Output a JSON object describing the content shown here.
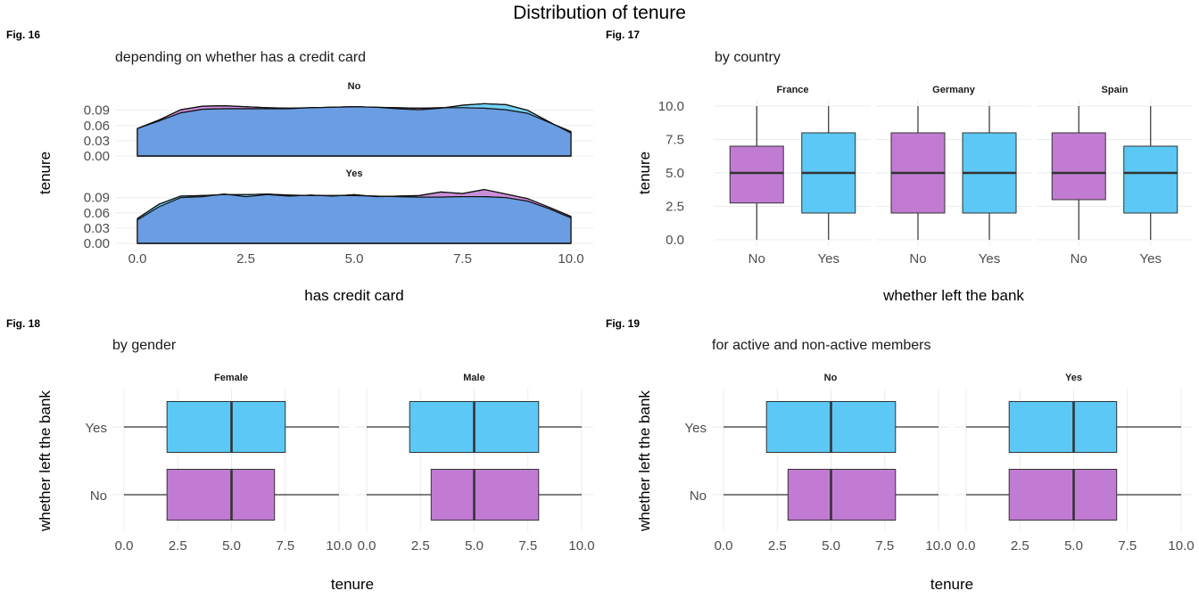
{
  "title": "Distribution of tenure",
  "colors": {
    "No": "#c17bd3",
    "Yes": "#5cc8f6",
    "overlap": "#6a9de2"
  },
  "chart_data": [
    {
      "fig_label": "Fig. 16",
      "type": "density",
      "subtitle": "depending on whether has a credit card",
      "xlabel": "has credit card",
      "ylabel": "tenure",
      "xlim": [
        0,
        10
      ],
      "xticks": [
        "0.0",
        "2.5",
        "5.0",
        "7.5",
        "10.0"
      ],
      "ylim": [
        0,
        0.1
      ],
      "yticks": [
        "0.00",
        "0.03",
        "0.06",
        "0.09"
      ],
      "fill_groups": [
        "No",
        "Yes"
      ],
      "panels": [
        {
          "label": "No",
          "x": [
            0,
            0.5,
            1,
            1.5,
            2,
            2.5,
            3,
            3.5,
            4,
            4.5,
            5,
            5.5,
            6,
            6.5,
            7,
            7.5,
            8,
            8.5,
            9,
            9.5,
            10
          ],
          "series": [
            {
              "group": "No",
              "values": [
                0.054,
                0.071,
                0.091,
                0.098,
                0.099,
                0.097,
                0.095,
                0.094,
                0.095,
                0.096,
                0.097,
                0.096,
                0.095,
                0.094,
                0.095,
                0.095,
                0.094,
                0.091,
                0.084,
                0.066,
                0.048
              ]
            },
            {
              "group": "Yes",
              "values": [
                0.054,
                0.069,
                0.085,
                0.092,
                0.093,
                0.093,
                0.093,
                0.093,
                0.095,
                0.096,
                0.097,
                0.096,
                0.093,
                0.091,
                0.094,
                0.1,
                0.103,
                0.101,
                0.09,
                0.067,
                0.045
              ]
            }
          ]
        },
        {
          "label": "Yes",
          "x": [
            0,
            0.5,
            1,
            1.5,
            2,
            2.5,
            3,
            3.5,
            4,
            4.5,
            5,
            5.5,
            6,
            6.5,
            7,
            7.5,
            8,
            8.5,
            9,
            9.5,
            10
          ],
          "series": [
            {
              "group": "No",
              "values": [
                0.046,
                0.072,
                0.09,
                0.092,
                0.097,
                0.092,
                0.096,
                0.093,
                0.095,
                0.093,
                0.096,
                0.092,
                0.093,
                0.094,
                0.101,
                0.098,
                0.106,
                0.097,
                0.088,
                0.071,
                0.053
              ]
            },
            {
              "group": "Yes",
              "values": [
                0.049,
                0.077,
                0.093,
                0.094,
                0.096,
                0.096,
                0.097,
                0.095,
                0.094,
                0.094,
                0.094,
                0.093,
                0.092,
                0.091,
                0.091,
                0.092,
                0.092,
                0.09,
                0.083,
                0.068,
                0.05
              ]
            }
          ]
        }
      ]
    },
    {
      "fig_label": "Fig. 17",
      "type": "boxplot",
      "orientation": "vertical",
      "subtitle": "by country",
      "xlabel": "whether left the bank",
      "ylabel": "tenure",
      "ylim": [
        0,
        10
      ],
      "yticks": [
        "0.0",
        "2.5",
        "5.0",
        "7.5",
        "10.0"
      ],
      "categories": [
        "No",
        "Yes"
      ],
      "panels": [
        {
          "label": "France",
          "boxes": [
            {
              "category": "No",
              "min": 0,
              "q1": 2.75,
              "median": 5,
              "q3": 7,
              "max": 10
            },
            {
              "category": "Yes",
              "min": 0,
              "q1": 2,
              "median": 5,
              "q3": 8,
              "max": 10
            }
          ]
        },
        {
          "label": "Germany",
          "boxes": [
            {
              "category": "No",
              "min": 0,
              "q1": 2,
              "median": 5,
              "q3": 8,
              "max": 10
            },
            {
              "category": "Yes",
              "min": 0,
              "q1": 2,
              "median": 5,
              "q3": 8,
              "max": 10
            }
          ]
        },
        {
          "label": "Spain",
          "boxes": [
            {
              "category": "No",
              "min": 0,
              "q1": 3,
              "median": 5,
              "q3": 8,
              "max": 10
            },
            {
              "category": "Yes",
              "min": 0,
              "q1": 2,
              "median": 5,
              "q3": 7,
              "max": 10
            }
          ]
        }
      ]
    },
    {
      "fig_label": "Fig. 18",
      "type": "boxplot",
      "orientation": "horizontal",
      "subtitle": "by gender",
      "xlabel": "tenure",
      "ylabel": "whether left the bank",
      "xlim": [
        0,
        10
      ],
      "xticks": [
        "0.0",
        "2.5",
        "5.0",
        "7.5",
        "10.0"
      ],
      "categories": [
        "No",
        "Yes"
      ],
      "panels": [
        {
          "label": "Female",
          "boxes": [
            {
              "category": "No",
              "min": 0,
              "q1": 2,
              "median": 5,
              "q3": 7,
              "max": 10
            },
            {
              "category": "Yes",
              "min": 0,
              "q1": 2,
              "median": 5,
              "q3": 7.5,
              "max": 10
            }
          ]
        },
        {
          "label": "Male",
          "boxes": [
            {
              "category": "No",
              "min": 0,
              "q1": 3,
              "median": 5,
              "q3": 8,
              "max": 10
            },
            {
              "category": "Yes",
              "min": 0,
              "q1": 2,
              "median": 5,
              "q3": 8,
              "max": 10
            }
          ]
        }
      ]
    },
    {
      "fig_label": "Fig. 19",
      "type": "boxplot",
      "orientation": "horizontal",
      "subtitle": "for active and non-active members",
      "xlabel": "tenure",
      "ylabel": "whether left the bank",
      "xlim": [
        0,
        10
      ],
      "xticks": [
        "0.0",
        "2.5",
        "5.0",
        "7.5",
        "10.0"
      ],
      "categories": [
        "No",
        "Yes"
      ],
      "panels": [
        {
          "label": "No",
          "boxes": [
            {
              "category": "No",
              "min": 0,
              "q1": 3,
              "median": 5,
              "q3": 8,
              "max": 10
            },
            {
              "category": "Yes",
              "min": 0,
              "q1": 2,
              "median": 5,
              "q3": 8,
              "max": 10
            }
          ]
        },
        {
          "label": "Yes",
          "boxes": [
            {
              "category": "No",
              "min": 0,
              "q1": 2,
              "median": 5,
              "q3": 7,
              "max": 10
            },
            {
              "category": "Yes",
              "min": 0,
              "q1": 2,
              "median": 5,
              "q3": 7,
              "max": 10
            }
          ]
        }
      ]
    }
  ]
}
